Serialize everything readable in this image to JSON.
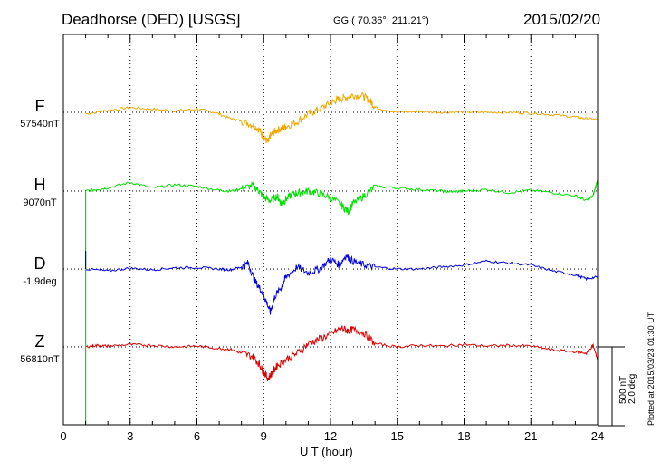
{
  "chart_data": {
    "type": "line",
    "title": "Deadhorse (DED)  [USGS]",
    "coordinates": "GG ( 70.36°, 211.21°)",
    "date": "2015/02/20",
    "xlabel": "U T (hour)",
    "xlim": [
      0,
      24
    ],
    "xticks": [
      0,
      3,
      6,
      9,
      12,
      15,
      18,
      21,
      24
    ],
    "grid": true,
    "scale_labels": [
      "500 nT",
      "2.0 deg"
    ],
    "plotted_note": "Plotted at 2015/03/23 01:30 UT",
    "colors": {
      "F": "#f0a800",
      "H": "#00e000",
      "D": "#0000e0",
      "Z": "#e00000"
    },
    "series": [
      {
        "name": "F",
        "baseline": "57540nT",
        "unit": "nT",
        "x": [
          1,
          2,
          3,
          4,
          5,
          6,
          6.8,
          7.5,
          8,
          8.5,
          8.8,
          9.0,
          9.2,
          9.3,
          9.5,
          9.8,
          10,
          10.5,
          11,
          11.5,
          12,
          12.3,
          12.6,
          13,
          13.5,
          13.8,
          14,
          15,
          16,
          17,
          18,
          19,
          20,
          21,
          22,
          23,
          23.5,
          24
        ],
        "values": [
          -10,
          12,
          30,
          20,
          10,
          20,
          0,
          -40,
          -55,
          -80,
          -110,
          -160,
          -190,
          -150,
          -120,
          -100,
          -90,
          -60,
          -10,
          20,
          60,
          80,
          90,
          110,
          100,
          70,
          30,
          0,
          5,
          0,
          3,
          0,
          0,
          -5,
          -15,
          -30,
          -40,
          -45
        ]
      },
      {
        "name": "H",
        "baseline": "9070nT",
        "unit": "nT",
        "x": [
          1,
          1.5,
          2,
          3,
          4,
          5,
          6,
          7,
          7.5,
          8,
          8.5,
          8.8,
          9,
          9.3,
          9.6,
          9.8,
          10,
          10.3,
          10.6,
          11,
          11.5,
          12,
          12.5,
          12.8,
          13,
          13.5,
          14,
          15,
          16,
          17,
          17.5,
          18,
          19,
          20,
          21,
          22,
          23,
          23.5,
          23.8,
          24
        ],
        "values": [
          0,
          10,
          20,
          55,
          20,
          40,
          30,
          5,
          0,
          15,
          35,
          0,
          -40,
          -60,
          -30,
          -80,
          -50,
          -20,
          -10,
          0,
          -15,
          -40,
          -90,
          -130,
          -80,
          -30,
          30,
          20,
          10,
          0,
          -5,
          0,
          10,
          -10,
          5,
          -10,
          -30,
          -60,
          -30,
          70
        ]
      },
      {
        "name": "D",
        "baseline": "-1.9deg",
        "unit": "deg",
        "x": [
          1,
          2,
          3,
          4,
          5,
          6,
          7,
          7.5,
          8,
          8.3,
          8.6,
          8.9,
          9.1,
          9.3,
          9.5,
          9.8,
          10,
          10.5,
          11,
          11.5,
          12,
          12.4,
          12.7,
          13,
          13.5,
          14,
          15,
          16,
          17,
          18,
          19,
          20,
          21,
          22,
          23,
          23.5,
          24
        ],
        "values": [
          0,
          -0.05,
          0.02,
          -0.02,
          0.03,
          0.04,
          0,
          -0.02,
          0.05,
          0.15,
          -0.3,
          -0.55,
          -0.8,
          -1.1,
          -0.7,
          -0.45,
          -0.2,
          0.05,
          -0.1,
          0.0,
          0.25,
          0.1,
          0.35,
          0.2,
          0.1,
          0.05,
          0.0,
          0.0,
          0.05,
          0.1,
          0.2,
          0.15,
          0.1,
          -0.05,
          -0.15,
          -0.25,
          -0.2
        ]
      },
      {
        "name": "Z",
        "baseline": "56810nT",
        "unit": "nT",
        "x": [
          1,
          1.5,
          2,
          3,
          4,
          5,
          6,
          7,
          7.5,
          8,
          8.5,
          8.8,
          9,
          9.2,
          9.4,
          9.6,
          10,
          10.5,
          11,
          11.5,
          12,
          12.5,
          12.8,
          13,
          13.5,
          14,
          15,
          16,
          17,
          18,
          19,
          20,
          21,
          22,
          23,
          23.5,
          23.8,
          24
        ],
        "values": [
          0,
          10,
          5,
          15,
          10,
          0,
          5,
          -10,
          -15,
          -40,
          -60,
          -110,
          -160,
          -200,
          -160,
          -120,
          -80,
          -40,
          20,
          50,
          80,
          120,
          100,
          110,
          90,
          20,
          0,
          10,
          5,
          15,
          5,
          10,
          5,
          -20,
          -30,
          -40,
          10,
          -80
        ]
      }
    ]
  }
}
